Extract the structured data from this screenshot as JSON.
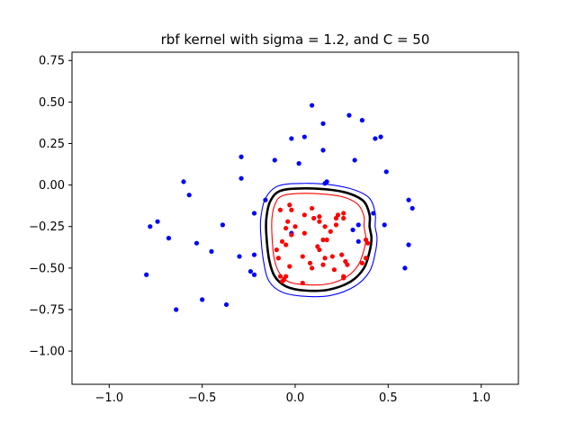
{
  "chart_data": {
    "type": "scatter",
    "title": "rbf kernel with sigma = 1.2, and C = 50",
    "xlabel": "",
    "ylabel": "",
    "xlim": [
      -1.2,
      1.2
    ],
    "ylim": [
      -1.2,
      0.8
    ],
    "x_ticks": [
      -1.0,
      -0.5,
      0.0,
      0.5,
      1.0
    ],
    "x_tick_labels": [
      "−1.0",
      "−0.5",
      "0.0",
      "0.5",
      "1.0"
    ],
    "y_ticks": [
      0.75,
      0.5,
      0.25,
      0.0,
      -0.25,
      -0.5,
      -0.75,
      -1.0
    ],
    "y_tick_labels": [
      "0.75",
      "0.50",
      "0.25",
      "0.00",
      "−0.25",
      "−0.50",
      "−0.75",
      "−1.00"
    ],
    "grid": false,
    "colors": {
      "class_pos": "#0000ff",
      "class_neg": "#ff0000",
      "boundary": "#000000",
      "margin_pos": "#0000ff",
      "margin_neg": "#ff0000"
    },
    "series": [
      {
        "color": "#0000ff",
        "points": [
          [
            0.09,
            0.48
          ],
          [
            0.15,
            0.37
          ],
          [
            0.29,
            0.42
          ],
          [
            0.36,
            0.39
          ],
          [
            -0.02,
            0.28
          ],
          [
            0.05,
            0.29
          ],
          [
            0.15,
            0.21
          ],
          [
            0.43,
            0.28
          ],
          [
            0.46,
            0.29
          ],
          [
            -0.29,
            0.17
          ],
          [
            -0.11,
            0.15
          ],
          [
            0.02,
            0.13
          ],
          [
            0.32,
            0.15
          ],
          [
            0.49,
            0.08
          ],
          [
            -0.6,
            0.02
          ],
          [
            -0.29,
            0.04
          ],
          [
            0.16,
            0.01
          ],
          [
            0.17,
            0.02
          ],
          [
            -0.57,
            -0.06
          ],
          [
            -0.16,
            -0.09
          ],
          [
            0.61,
            -0.09
          ],
          [
            0.63,
            -0.14
          ],
          [
            -0.22,
            -0.17
          ],
          [
            -0.78,
            -0.25
          ],
          [
            -0.74,
            -0.22
          ],
          [
            -0.39,
            -0.24
          ],
          [
            0.34,
            -0.24
          ],
          [
            0.48,
            -0.24
          ],
          [
            -0.02,
            -0.29
          ],
          [
            -0.68,
            -0.32
          ],
          [
            0.42,
            -0.17
          ],
          [
            -0.53,
            -0.35
          ],
          [
            0.34,
            -0.34
          ],
          [
            0.61,
            -0.36
          ],
          [
            -0.45,
            -0.4
          ],
          [
            -0.3,
            -0.43
          ],
          [
            -0.22,
            -0.42
          ],
          [
            -0.8,
            -0.54
          ],
          [
            0.59,
            -0.5
          ],
          [
            -0.24,
            -0.52
          ],
          [
            -0.22,
            -0.54
          ],
          [
            -0.5,
            -0.69
          ],
          [
            -0.37,
            -0.72
          ],
          [
            -0.64,
            -0.75
          ],
          [
            0.31,
            -0.27
          ]
        ]
      },
      {
        "color": "#ff0000",
        "points": [
          [
            -0.03,
            -0.12
          ],
          [
            -0.02,
            -0.15
          ],
          [
            0.09,
            -0.14
          ],
          [
            -0.08,
            -0.15
          ],
          [
            0.05,
            -0.18
          ],
          [
            -0.04,
            -0.22
          ],
          [
            0.13,
            -0.19
          ],
          [
            0.13,
            -0.22
          ],
          [
            0.23,
            -0.18
          ],
          [
            0.26,
            -0.17
          ],
          [
            0.22,
            -0.2
          ],
          [
            0.26,
            -0.2
          ],
          [
            -0.05,
            -0.26
          ],
          [
            0.16,
            -0.25
          ],
          [
            0.22,
            -0.24
          ],
          [
            -0.02,
            -0.3
          ],
          [
            0.05,
            -0.29
          ],
          [
            -0.07,
            -0.34
          ],
          [
            -0.05,
            -0.36
          ],
          [
            0.19,
            -0.28
          ],
          [
            0.15,
            -0.33
          ],
          [
            0.17,
            -0.33
          ],
          [
            0.38,
            -0.33
          ],
          [
            0.39,
            -0.35
          ],
          [
            0.12,
            -0.37
          ],
          [
            0.13,
            -0.39
          ],
          [
            -0.1,
            -0.39
          ],
          [
            0.2,
            -0.43
          ],
          [
            0.25,
            -0.42
          ],
          [
            0.04,
            -0.43
          ],
          [
            0.16,
            -0.44
          ],
          [
            -0.09,
            -0.44
          ],
          [
            0.38,
            -0.44
          ],
          [
            0.27,
            -0.46
          ],
          [
            0.28,
            -0.48
          ],
          [
            0.08,
            -0.47
          ],
          [
            0.36,
            -0.47
          ],
          [
            0.15,
            -0.48
          ],
          [
            -0.03,
            -0.49
          ],
          [
            0.09,
            -0.5
          ],
          [
            0.21,
            -0.51
          ],
          [
            -0.05,
            -0.55
          ],
          [
            -0.08,
            -0.55
          ],
          [
            0.26,
            -0.55
          ],
          [
            0.04,
            -0.59
          ],
          [
            -0.06,
            -0.57
          ],
          [
            -0.07,
            -0.58
          ],
          [
            0.26,
            -0.56
          ],
          [
            0.1,
            -0.2
          ],
          [
            0.0,
            -0.25
          ]
        ]
      }
    ],
    "contours": [
      {
        "role": "decision-boundary",
        "color": "#000000",
        "points": [
          [
            -0.08,
            -0.035
          ],
          [
            0.05,
            -0.02
          ],
          [
            0.2,
            -0.03
          ],
          [
            0.3,
            -0.055
          ],
          [
            0.37,
            -0.1
          ],
          [
            0.4,
            -0.18
          ],
          [
            0.4,
            -0.25
          ],
          [
            0.41,
            -0.32
          ],
          [
            0.4,
            -0.4
          ],
          [
            0.37,
            -0.5
          ],
          [
            0.3,
            -0.58
          ],
          [
            0.18,
            -0.63
          ],
          [
            0.05,
            -0.635
          ],
          [
            -0.05,
            -0.61
          ],
          [
            -0.11,
            -0.55
          ],
          [
            -0.14,
            -0.45
          ],
          [
            -0.155,
            -0.3
          ],
          [
            -0.155,
            -0.2
          ],
          [
            -0.135,
            -0.1
          ]
        ]
      },
      {
        "role": "margin-outer",
        "color": "#0000ff",
        "points": [
          [
            -0.09,
            -0.005
          ],
          [
            0.05,
            0.01
          ],
          [
            0.2,
            0.0
          ],
          [
            0.32,
            -0.03
          ],
          [
            0.4,
            -0.08
          ],
          [
            0.43,
            -0.17
          ],
          [
            0.43,
            -0.25
          ],
          [
            0.44,
            -0.32
          ],
          [
            0.43,
            -0.41
          ],
          [
            0.4,
            -0.52
          ],
          [
            0.32,
            -0.61
          ],
          [
            0.19,
            -0.665
          ],
          [
            0.05,
            -0.67
          ],
          [
            -0.07,
            -0.645
          ],
          [
            -0.14,
            -0.58
          ],
          [
            -0.17,
            -0.46
          ],
          [
            -0.185,
            -0.3
          ],
          [
            -0.185,
            -0.2
          ],
          [
            -0.16,
            -0.08
          ]
        ]
      },
      {
        "role": "margin-inner",
        "color": "#ff0000",
        "points": [
          [
            -0.07,
            -0.065
          ],
          [
            0.05,
            -0.05
          ],
          [
            0.2,
            -0.06
          ],
          [
            0.28,
            -0.08
          ],
          [
            0.34,
            -0.12
          ],
          [
            0.37,
            -0.19
          ],
          [
            0.37,
            -0.25
          ],
          [
            0.38,
            -0.32
          ],
          [
            0.37,
            -0.39
          ],
          [
            0.34,
            -0.48
          ],
          [
            0.28,
            -0.55
          ],
          [
            0.18,
            -0.595
          ],
          [
            0.05,
            -0.6
          ],
          [
            -0.04,
            -0.58
          ],
          [
            -0.09,
            -0.52
          ],
          [
            -0.115,
            -0.43
          ],
          [
            -0.125,
            -0.3
          ],
          [
            -0.125,
            -0.2
          ],
          [
            -0.11,
            -0.12
          ]
        ]
      }
    ]
  }
}
